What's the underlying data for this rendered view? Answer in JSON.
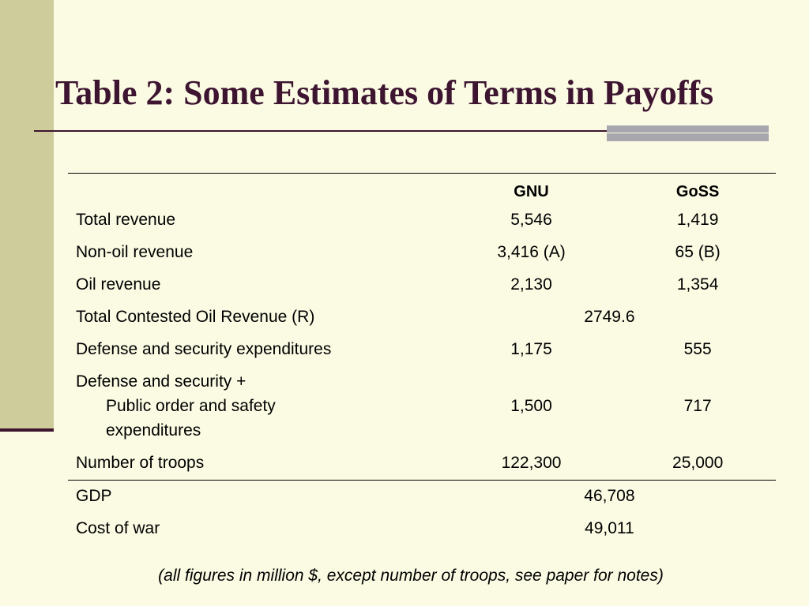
{
  "title": "Table 2:  Some Estimates of Terms in Payoffs",
  "columns": {
    "gnu": "GNU",
    "goss": "GoSS"
  },
  "rows": {
    "total_revenue": {
      "label": "Total revenue",
      "gnu": "5,546",
      "goss": "1,419"
    },
    "non_oil_revenue": {
      "label": "Non-oil revenue",
      "gnu": "3,416 (A)",
      "goss": "65 (B)"
    },
    "oil_revenue": {
      "label": "Oil revenue",
      "gnu": "2,130",
      "goss": "1,354"
    },
    "contested_oil": {
      "label": "Total Contested Oil Revenue (R)",
      "value": "2749.6"
    },
    "defense": {
      "label": "Defense and security expenditures",
      "gnu": "1,175",
      "goss": "555"
    },
    "defense_public": {
      "label_line1": "Defense and security +",
      "label_line2": "Public order and safety",
      "label_line3": "expenditures",
      "gnu": "1,500",
      "goss": "717"
    },
    "troops": {
      "label": "Number of troops",
      "gnu": "122,300",
      "goss": "25,000"
    },
    "gdp": {
      "label": "GDP",
      "value": "46,708"
    },
    "cost_of_war": {
      "label": "Cost of war",
      "value": "49,011"
    }
  },
  "footnote": "(all figures in million $, except number of troops, see paper for notes)",
  "colors": {
    "background": "#fbfbe4",
    "sidebar": "#cdcc9a",
    "title": "#3d1530",
    "accent_bar": "#a7a7ad"
  }
}
